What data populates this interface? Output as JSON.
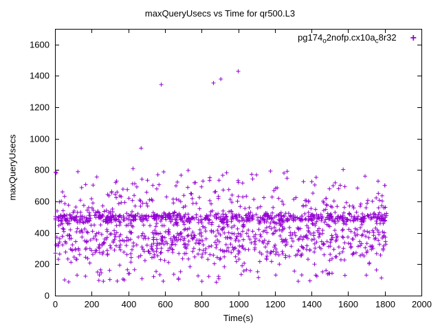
{
  "chart_data": {
    "type": "scatter",
    "title": "maxQueryUsecs vs Time for qr500.L3",
    "xlabel": "Time(s)",
    "ylabel": "maxQueryUsecs",
    "xlim": [
      0,
      2000
    ],
    "ylim": [
      0,
      1700
    ],
    "xticks": [
      0,
      200,
      400,
      600,
      800,
      1000,
      1200,
      1400,
      1600,
      1800,
      2000
    ],
    "yticks": [
      0,
      200,
      400,
      600,
      800,
      1000,
      1200,
      1400,
      1600
    ],
    "grid": false,
    "marker": "plus",
    "marker_color": "#9400D3",
    "axis_color": "#000000",
    "legend": {
      "position": "top-right-inside",
      "series": [
        {
          "label_plain": "pg174_o2nofp.cx10a_c8r32",
          "label_parts": [
            {
              "text": "pg174",
              "sub": false
            },
            {
              "text": "o",
              "sub": true
            },
            {
              "text": "2nofp.cx10a",
              "sub": false
            },
            {
              "text": "c",
              "sub": true
            },
            {
              "text": "8r32",
              "sub": false
            }
          ],
          "marker": "plus",
          "color": "#9400D3"
        }
      ]
    },
    "outlier_points": [
      [
        470,
        940
      ],
      [
        580,
        1345
      ],
      [
        865,
        1355
      ],
      [
        905,
        1380
      ],
      [
        1000,
        1430
      ]
    ],
    "cloud": {
      "seed": 1337,
      "count": 1500,
      "x_min": 2,
      "x_max": 1810,
      "y_clamp_min": 80,
      "y_clamp_max": 835,
      "bands": [
        {
          "weight": 0.3,
          "kind": "gauss",
          "mean": 495,
          "sd": 18
        },
        {
          "weight": 0.26,
          "kind": "gauss",
          "mean": 330,
          "sd": 60
        },
        {
          "weight": 0.3,
          "kind": "gauss",
          "mean": 420,
          "sd": 115
        },
        {
          "weight": 0.1,
          "kind": "uniform",
          "min": 560,
          "max": 810
        },
        {
          "weight": 0.04,
          "kind": "uniform",
          "min": 85,
          "max": 175
        }
      ]
    }
  }
}
